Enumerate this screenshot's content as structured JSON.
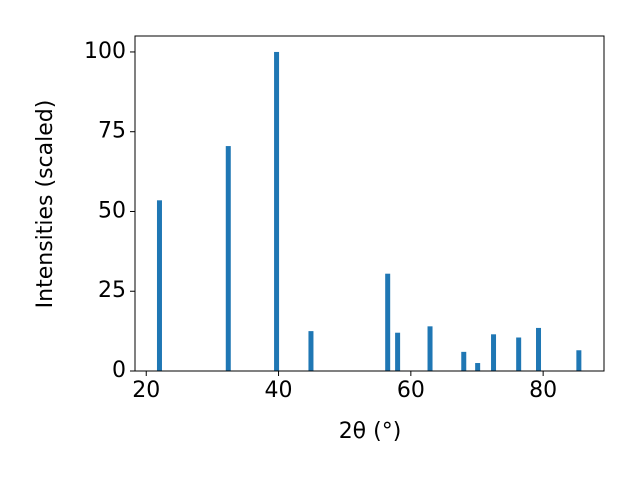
{
  "chart_data": {
    "type": "bar",
    "x_label": "2θ (°)",
    "y_label": "Intensities (scaled)",
    "x": [
      22.0,
      32.4,
      39.7,
      44.9,
      56.5,
      58.0,
      62.9,
      68.0,
      70.1,
      72.5,
      76.3,
      79.3,
      85.4
    ],
    "values": [
      53.5,
      70.5,
      100,
      12.5,
      30.5,
      12,
      14,
      6,
      2.5,
      11.5,
      10.5,
      13.5,
      6.5
    ],
    "color": "#1f77b4",
    "xlim": [
      18.3,
      89.2
    ],
    "xticks": [
      20,
      40,
      60,
      80
    ],
    "ylim": [
      0,
      105
    ],
    "yticks": [
      0,
      25,
      50,
      75,
      100
    ],
    "grid": false
  }
}
